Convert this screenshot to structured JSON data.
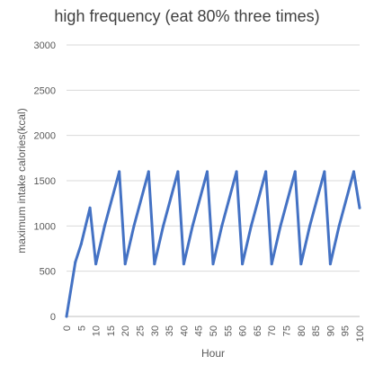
{
  "chart_data": {
    "type": "line",
    "title": "high frequency (eat 80% three times)",
    "xlabel": "Hour",
    "ylabel": "maximum intake calories(kcal)",
    "ylim": [
      0,
      3000
    ],
    "xlim": [
      0,
      100
    ],
    "y_ticks": [
      0,
      500,
      1000,
      1500,
      2000,
      2500,
      3000
    ],
    "x_ticks": [
      0,
      5,
      10,
      15,
      20,
      25,
      30,
      35,
      40,
      45,
      50,
      55,
      60,
      65,
      70,
      75,
      80,
      85,
      90,
      95,
      100
    ],
    "grid": true,
    "legend": "none",
    "color": "#4472c4",
    "series": [
      {
        "x": [
          0,
          3,
          5,
          8,
          10,
          13,
          18,
          20,
          23,
          28,
          30,
          33,
          38,
          40,
          43,
          48,
          50,
          53,
          58,
          60,
          63,
          68,
          70,
          73,
          78,
          80,
          83,
          88,
          90,
          93,
          98,
          100
        ],
        "y": [
          0,
          600,
          800,
          1200,
          580,
          1000,
          1600,
          580,
          1000,
          1600,
          580,
          1000,
          1600,
          580,
          1000,
          1600,
          580,
          1000,
          1600,
          580,
          1000,
          1600,
          580,
          1000,
          1600,
          580,
          1000,
          1600,
          580,
          1000,
          1600,
          1200
        ]
      }
    ]
  }
}
